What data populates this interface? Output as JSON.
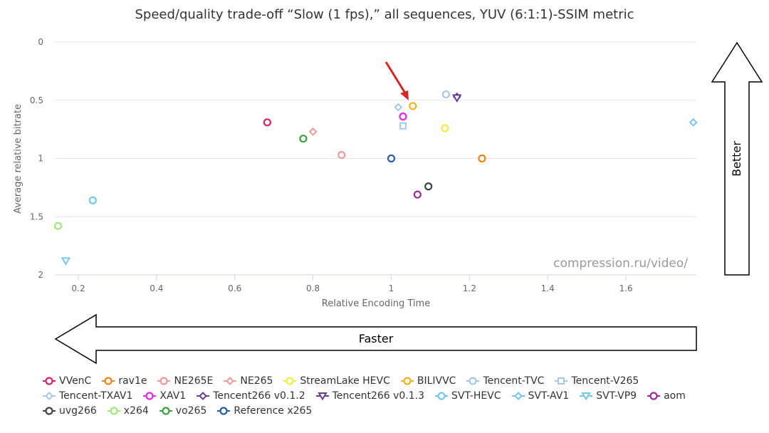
{
  "chart_data": {
    "type": "scatter",
    "title": "Speed/quality trade-off “Slow (1 fps),” all sequences, YUV (6:1:1)-SSIM metric",
    "xlabel": "Relative Encoding Time",
    "ylabel": "Average relative bitrate",
    "xlim": [
      0.14,
      1.78
    ],
    "ylim": [
      0,
      2
    ],
    "y_reversed": true,
    "x_ticks": [
      "0.2",
      "0.4",
      "0.6",
      "0.8",
      "1",
      "1.2",
      "1.4",
      "1.6"
    ],
    "x_tick_values": [
      0.2,
      0.4,
      0.6,
      0.8,
      1.0,
      1.2,
      1.4,
      1.6
    ],
    "y_ticks": [
      "0",
      "0.5",
      "1",
      "1.5",
      "2"
    ],
    "y_tick_values": [
      0,
      0.5,
      1,
      1.5,
      2
    ],
    "grid": true,
    "watermark": "compression.ru/video/",
    "series": [
      {
        "name": "VVenC",
        "color": "#d4246f",
        "marker": "circle",
        "points": [
          [
            0.683,
            0.69
          ]
        ]
      },
      {
        "name": "rav1e",
        "color": "#ec8416",
        "marker": "circle",
        "points": [
          [
            1.232,
            1.0
          ]
        ]
      },
      {
        "name": "NE265E",
        "color": "#ee9a9a",
        "marker": "circle",
        "points": [
          [
            0.873,
            0.97
          ]
        ]
      },
      {
        "name": "NE265",
        "color": "#ee9a9a",
        "marker": "diamond",
        "points": [
          [
            0.8,
            0.77
          ]
        ]
      },
      {
        "name": "StreamLake HEVC",
        "color": "#f4ec44",
        "marker": "circle",
        "points": [
          [
            1.137,
            0.74
          ]
        ]
      },
      {
        "name": "BILIVVC",
        "color": "#f2b21c",
        "marker": "circle",
        "points": [
          [
            1.055,
            0.55
          ]
        ]
      },
      {
        "name": "Tencent-TVC",
        "color": "#a6c8e6",
        "marker": "circle",
        "points": [
          [
            1.14,
            0.45
          ]
        ]
      },
      {
        "name": "Tencent-V265",
        "color": "#a6c8e6",
        "marker": "square",
        "points": [
          [
            1.03,
            0.72
          ]
        ]
      },
      {
        "name": "Tencent-TXAV1",
        "color": "#a6c8e6",
        "marker": "diamond",
        "points": [
          [
            1.018,
            0.56
          ]
        ]
      },
      {
        "name": "XAV1",
        "color": "#e428e8",
        "marker": "circle",
        "points": [
          [
            1.03,
            0.64
          ]
        ]
      },
      {
        "name": "Tencent266 v0.1.2",
        "color": "#6a3d9a",
        "marker": "diamond",
        "points": [
          [
            1.168,
            0.47
          ]
        ]
      },
      {
        "name": "Tencent266 v0.1.3",
        "color": "#6a3d9a",
        "marker": "triangle-down",
        "points": [
          [
            1.168,
            0.48
          ]
        ]
      },
      {
        "name": "SVT-HEVC",
        "color": "#74c8ec",
        "marker": "circle",
        "points": [
          [
            0.237,
            1.36
          ]
        ]
      },
      {
        "name": "SVT-AV1",
        "color": "#74c8ec",
        "marker": "diamond",
        "points": [
          [
            1.772,
            0.69
          ]
        ]
      },
      {
        "name": "SVT-VP9",
        "color": "#74c8ec",
        "marker": "triangle-down",
        "points": [
          [
            0.168,
            1.88
          ]
        ]
      },
      {
        "name": "aom",
        "color": "#a0289a",
        "marker": "circle",
        "points": [
          [
            1.067,
            1.31
          ]
        ]
      },
      {
        "name": "uvg266",
        "color": "#3d4449",
        "marker": "circle",
        "points": [
          [
            1.095,
            1.24
          ]
        ]
      },
      {
        "name": "x264",
        "color": "#9ee87a",
        "marker": "circle",
        "points": [
          [
            0.148,
            1.58
          ]
        ]
      },
      {
        "name": "vo265",
        "color": "#3aa03a",
        "marker": "circle",
        "points": [
          [
            0.775,
            0.83
          ]
        ]
      },
      {
        "name": "Reference x265",
        "color": "#2a5ca8",
        "marker": "circle",
        "points": [
          [
            1.0,
            1.0
          ]
        ]
      }
    ],
    "legend_rows": [
      [
        0,
        1,
        2,
        3,
        4,
        5,
        6,
        7
      ],
      [
        8,
        9,
        10,
        11,
        12,
        13,
        14,
        15
      ],
      [
        16,
        17,
        18,
        19
      ]
    ],
    "annotations": {
      "better_label": "Better",
      "faster_label": "Faster",
      "arrow_color": "#d62728",
      "highlight_target": "BILIVVC"
    }
  }
}
